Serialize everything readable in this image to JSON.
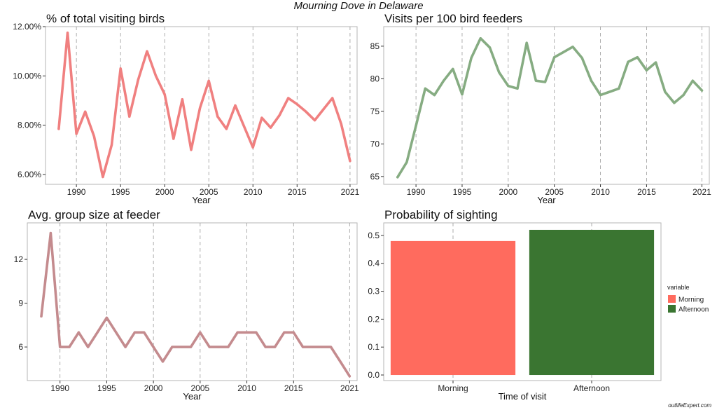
{
  "figure_title": "Mourning Dove in Delaware",
  "watermark": "outlifeExpert.com",
  "chart_data": [
    {
      "type": "line",
      "title": "% of total visiting birds",
      "xlabel": "Year",
      "ylabel": "",
      "color": "#f08080",
      "x": [
        1988,
        1989,
        1990,
        1991,
        1992,
        1993,
        1994,
        1995,
        1996,
        1997,
        1998,
        1999,
        2000,
        2001,
        2002,
        2003,
        2004,
        2005,
        2006,
        2007,
        2008,
        2009,
        2010,
        2011,
        2012,
        2013,
        2014,
        2015,
        2016,
        2017,
        2018,
        2019,
        2020,
        2021
      ],
      "y": [
        7.85,
        11.75,
        7.65,
        8.55,
        7.55,
        5.9,
        7.2,
        10.3,
        8.35,
        9.85,
        11.0,
        10.0,
        9.25,
        7.45,
        9.05,
        7.0,
        8.7,
        9.8,
        8.35,
        7.85,
        8.8,
        7.95,
        7.1,
        8.3,
        7.9,
        8.4,
        9.1,
        8.85,
        8.55,
        8.2,
        8.65,
        9.1,
        8.05,
        6.55
      ],
      "xticks": [
        1990,
        1995,
        2000,
        2005,
        2010,
        2015,
        2021
      ],
      "yticks": [
        6,
        8,
        10,
        12
      ],
      "ytick_labels": [
        "6.00%",
        "8.00%",
        "10.00%",
        "12.00%"
      ],
      "xlim": [
        1986.5,
        2021.8
      ],
      "ylim": [
        5.6,
        12.0
      ],
      "grid": "vertical dashed"
    },
    {
      "type": "line",
      "title": "Visits per 100 bird feeders",
      "xlabel": "Year",
      "ylabel": "",
      "color": "#86ac82",
      "x": [
        1988,
        1989,
        1990,
        1991,
        1992,
        1993,
        1994,
        1995,
        1996,
        1997,
        1998,
        1999,
        2000,
        2001,
        2002,
        2003,
        2004,
        2005,
        2006,
        2007,
        2008,
        2009,
        2010,
        2011,
        2012,
        2013,
        2014,
        2015,
        2016,
        2017,
        2018,
        2019,
        2020,
        2021
      ],
      "y": [
        64.9,
        67.2,
        72.8,
        78.5,
        77.5,
        79.7,
        81.5,
        77.6,
        83.2,
        86.2,
        84.8,
        81.0,
        78.9,
        78.5,
        85.5,
        79.7,
        79.5,
        83.3,
        84.1,
        84.9,
        83.2,
        79.7,
        77.5,
        78.0,
        78.5,
        82.6,
        83.3,
        81.3,
        82.5,
        78.0,
        76.3,
        77.5,
        79.7,
        78.2
      ],
      "xticks": [
        1990,
        1995,
        2000,
        2005,
        2010,
        2015,
        2021
      ],
      "yticks": [
        65,
        70,
        75,
        80,
        85
      ],
      "ytick_labels": [
        "65",
        "70",
        "75",
        "80",
        "85"
      ],
      "xlim": [
        1986.5,
        2021.8
      ],
      "ylim": [
        63.8,
        88.0
      ],
      "grid": "vertical dashed"
    },
    {
      "type": "line",
      "title": "Avg. group size at feeder",
      "xlabel": "Year",
      "ylabel": "",
      "color": "#c48b8e",
      "x": [
        1988,
        1989,
        1990,
        1991,
        1992,
        1993,
        1994,
        1995,
        1996,
        1997,
        1998,
        1999,
        2000,
        2001,
        2002,
        2003,
        2004,
        2005,
        2006,
        2007,
        2008,
        2009,
        2010,
        2011,
        2012,
        2013,
        2014,
        2015,
        2016,
        2017,
        2018,
        2019,
        2020,
        2021
      ],
      "y": [
        8.1,
        13.8,
        6.0,
        6.0,
        7.0,
        6.0,
        7.0,
        8.0,
        7.0,
        6.0,
        7.0,
        7.0,
        6.0,
        5.0,
        6.0,
        6.0,
        6.0,
        7.0,
        6.0,
        6.0,
        6.0,
        7.0,
        7.0,
        7.0,
        6.0,
        6.0,
        7.0,
        7.0,
        6.0,
        6.0,
        6.0,
        6.0,
        5.0,
        4.0
      ],
      "xticks": [
        1990,
        1995,
        2000,
        2005,
        2010,
        2015,
        2021
      ],
      "yticks": [
        6,
        9,
        12
      ],
      "ytick_labels": [
        "6",
        "9",
        "12"
      ],
      "xlim": [
        1986.5,
        2021.8
      ],
      "ylim": [
        3.7,
        14.5
      ],
      "grid": "vertical dashed"
    },
    {
      "type": "bar",
      "title": "Probability of sighting",
      "xlabel": "Time of visit",
      "ylabel": "",
      "categories": [
        "Morning",
        "Afternoon"
      ],
      "values": [
        0.48,
        0.52
      ],
      "colors": [
        "#ff6b5e",
        "#3a7531"
      ],
      "yticks": [
        0.0,
        0.1,
        0.2,
        0.3,
        0.4,
        0.5
      ],
      "ytick_labels": [
        "0.0",
        "0.1",
        "0.2",
        "0.3",
        "0.4",
        "0.5"
      ],
      "ylim": [
        -0.02,
        0.545
      ],
      "legend": {
        "title": "variable",
        "entries": [
          "Morning",
          "Afternoon"
        ],
        "position": "right"
      }
    }
  ]
}
